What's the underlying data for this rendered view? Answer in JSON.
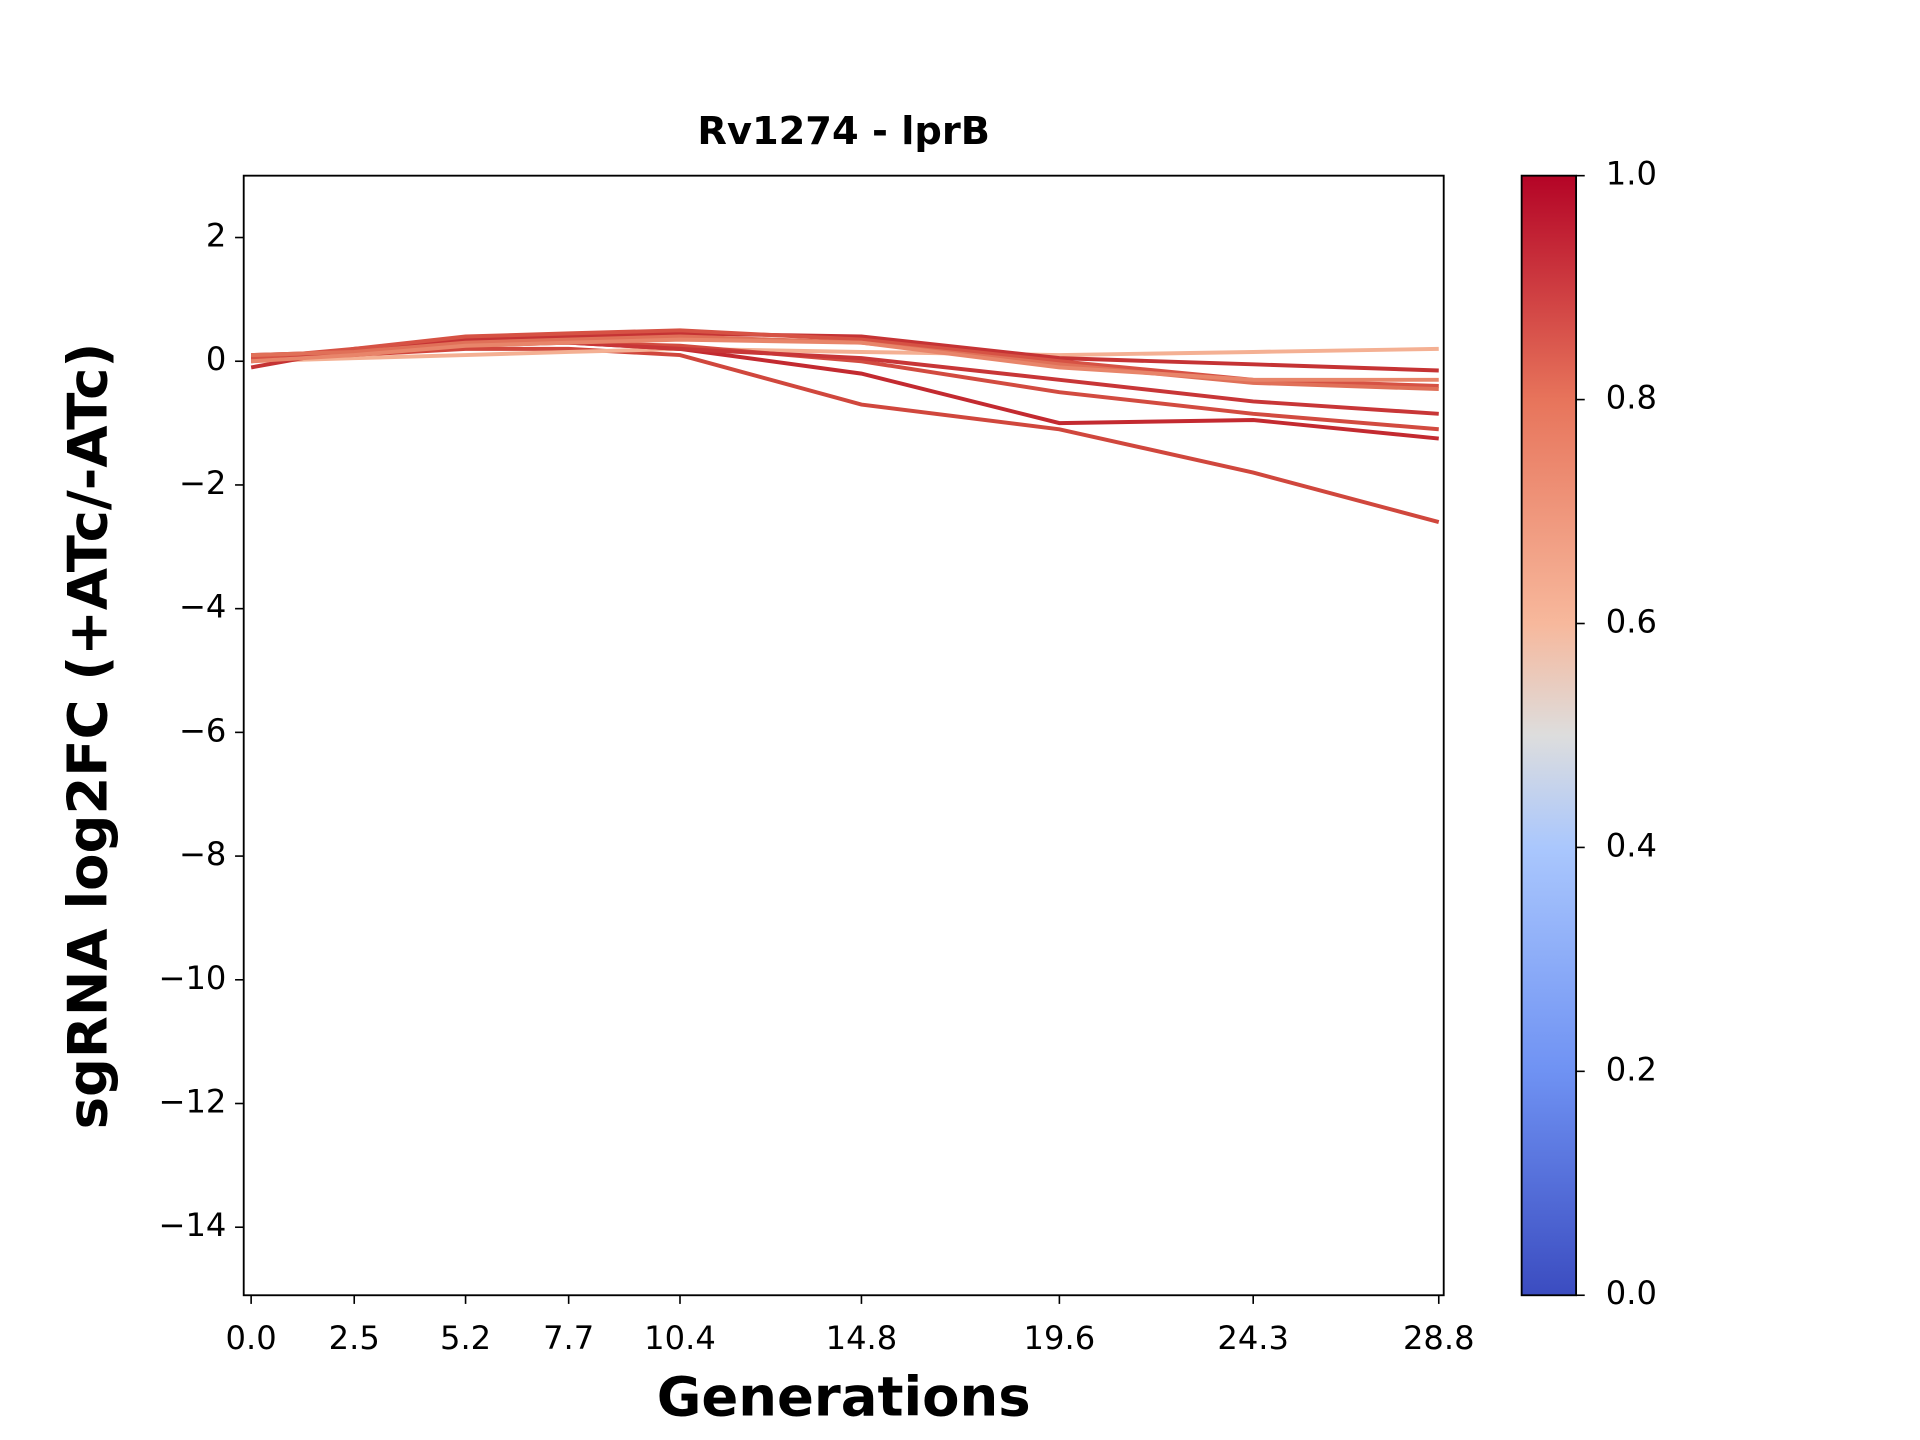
{
  "chart_data": {
    "type": "line",
    "title": "Rv1274 - lprB",
    "xlabel": "Generations",
    "ylabel": "sgRNA log2FC (+ATc/-ATc)",
    "x": [
      0,
      2.5,
      5.2,
      7.7,
      10.4,
      14.8,
      19.6,
      24.3,
      28.8
    ],
    "xlim": [
      -0.18,
      28.92
    ],
    "xticks": [
      {
        "value": 0,
        "label": "0.0"
      },
      2.5,
      5.2,
      7.7,
      10.4,
      14.8,
      19.6,
      24.3,
      28.8
    ],
    "ylim": [
      -15.1,
      3
    ],
    "yticks": [
      {
        "value": -14,
        "label": "−14"
      },
      {
        "value": -12,
        "label": "−12"
      },
      {
        "value": -10,
        "label": "−10"
      },
      {
        "value": -8,
        "label": "−8"
      },
      {
        "value": -6,
        "label": "−6"
      },
      {
        "value": -4,
        "label": "−4"
      },
      {
        "value": -2,
        "label": "−2"
      },
      0,
      2
    ],
    "series": [
      {
        "color": "#d0473d",
        "values": [
          0.05,
          0.1,
          0.2,
          0.2,
          0.1,
          -0.7,
          -1.1,
          -1.8,
          -2.6
        ]
      },
      {
        "color": "#f4b093",
        "values": [
          0.0,
          0.05,
          0.1,
          0.15,
          0.2,
          0.15,
          0.1,
          0.15,
          0.2
        ]
      },
      {
        "color": "#c32a30",
        "values": [
          0.1,
          0.15,
          0.3,
          0.3,
          0.2,
          -0.2,
          -1.0,
          -0.95,
          -1.25
        ]
      },
      {
        "color": "#d24b40",
        "values": [
          0.05,
          0.1,
          0.25,
          0.3,
          0.25,
          0.0,
          -0.5,
          -0.85,
          -1.1
        ]
      },
      {
        "color": "#c83637",
        "values": [
          0.0,
          0.15,
          0.3,
          0.3,
          0.2,
          0.05,
          -0.3,
          -0.65,
          -0.85
        ]
      },
      {
        "color": "#c53334",
        "values": [
          -0.1,
          0.2,
          0.35,
          0.4,
          0.45,
          0.4,
          0.05,
          -0.05,
          -0.15
        ]
      },
      {
        "color": "#d65244",
        "values": [
          0.05,
          0.2,
          0.4,
          0.45,
          0.5,
          0.35,
          0.0,
          -0.3,
          -0.4
        ]
      },
      {
        "color": "#e07058",
        "values": [
          0.1,
          0.15,
          0.3,
          0.35,
          0.4,
          0.3,
          -0.05,
          -0.35,
          -0.45
        ]
      },
      {
        "color": "#e8856a",
        "values": [
          0.0,
          0.1,
          0.25,
          0.3,
          0.35,
          0.3,
          -0.1,
          -0.3,
          -0.3
        ]
      }
    ],
    "colorbar": {
      "lim": [
        0,
        1
      ],
      "ticks": [
        {
          "value": 0,
          "label": "0.0"
        },
        0.2,
        0.4,
        0.6,
        0.8,
        {
          "value": 1,
          "label": "1.0"
        }
      ]
    }
  }
}
